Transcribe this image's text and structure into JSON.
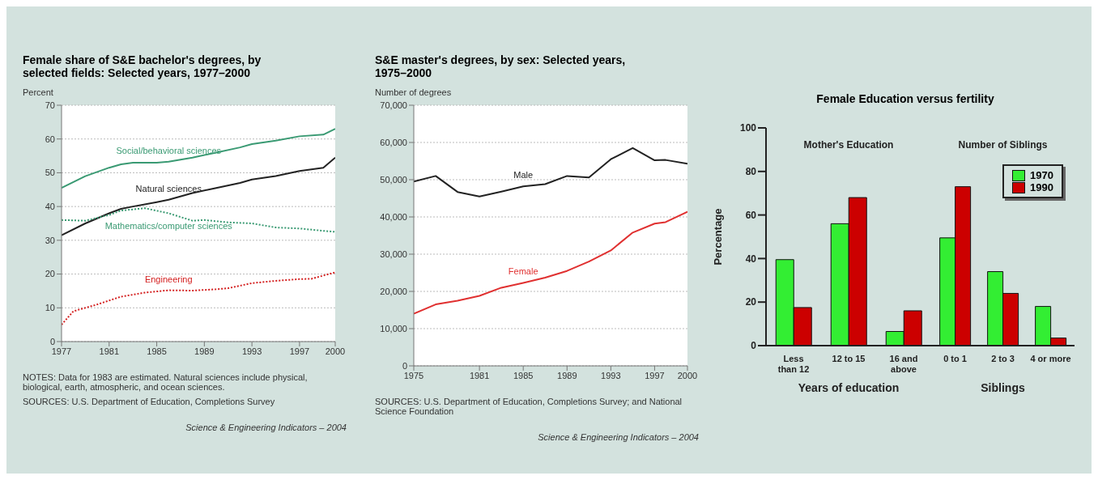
{
  "chart_data": [
    {
      "type": "line",
      "title": "Female share of S&E bachelor's degrees, by selected fields: Selected years, 1977–2000",
      "ylabel": "Percent",
      "xlim": [
        1977,
        2000
      ],
      "xticks": [
        1977,
        1981,
        1985,
        1989,
        1993,
        1997,
        2000
      ],
      "ylim": [
        0,
        70
      ],
      "yticks": [
        0,
        10,
        20,
        30,
        40,
        50,
        60,
        70
      ],
      "grid": "y",
      "series": [
        {
          "name": "Social/behavioral sciences",
          "color": "#3a9a73",
          "line_style": "solid",
          "x": [
            1977,
            1979,
            1981,
            1982,
            1983,
            1985,
            1986,
            1988,
            1990,
            1992,
            1993,
            1995,
            1997,
            1999,
            2000
          ],
          "values": [
            45.5,
            49,
            51.5,
            52.5,
            53,
            53,
            53.3,
            54.5,
            56,
            57.5,
            58.5,
            59.5,
            60.8,
            61.3,
            63
          ]
        },
        {
          "name": "Natural sciences",
          "color": "#222222",
          "line_style": "solid",
          "x": [
            1977,
            1979,
            1981,
            1982,
            1983,
            1985,
            1986,
            1988,
            1990,
            1992,
            1993,
            1995,
            1997,
            1999,
            2000
          ],
          "values": [
            31.5,
            35,
            38,
            39.3,
            40,
            41.3,
            42,
            44,
            45.5,
            47,
            48,
            49,
            50.5,
            51.5,
            54.5
          ]
        },
        {
          "name": "Mathematics/computer sciences",
          "color": "#3a9a73",
          "line_style": "dotted",
          "x": [
            1977,
            1979,
            1981,
            1982,
            1984,
            1986,
            1988,
            1989,
            1991,
            1993,
            1995,
            1997,
            1999,
            2000
          ],
          "values": [
            36,
            35.8,
            37.5,
            38.8,
            39.5,
            38,
            35.8,
            36,
            35.3,
            35,
            33.8,
            33.5,
            32.8,
            32.5
          ]
        },
        {
          "name": "Engineering",
          "color": "#d42020",
          "line_style": "dotted",
          "x": [
            1977,
            1978,
            1980,
            1982,
            1984,
            1986,
            1988,
            1990,
            1991,
            1993,
            1995,
            1997,
            1998,
            2000
          ],
          "values": [
            5,
            9,
            11,
            13.3,
            14.5,
            15.2,
            15.1,
            15.5,
            15.8,
            17.3,
            18,
            18.5,
            18.6,
            20.5
          ]
        }
      ],
      "annotations": [
        "NOTES: Data for 1983 are estimated. Natural sciences include physical, biological, earth, atmospheric, and ocean sciences.",
        "SOURCES: U.S. Department of Education, Completions Survey",
        "Science & Engineering Indicators – 2004"
      ]
    },
    {
      "type": "line",
      "title": "S&E master's degrees, by sex: Selected years, 1975–2000",
      "ylabel": "Number of degrees",
      "xlim": [
        1975,
        2000
      ],
      "xticks": [
        1975,
        1981,
        1985,
        1989,
        1993,
        1997,
        2000
      ],
      "ylim": [
        0,
        70000
      ],
      "yticks": [
        0,
        {
          "value": 10000,
          "label": "10,000"
        },
        {
          "value": 20000,
          "label": "20,000"
        },
        {
          "value": 30000,
          "label": "30,000"
        },
        {
          "value": 40000,
          "label": "40,000"
        },
        {
          "value": 50000,
          "label": "50,000"
        },
        {
          "value": 60000,
          "label": "60,000"
        },
        {
          "value": 70000,
          "label": "70,000"
        }
      ],
      "grid": "y",
      "series": [
        {
          "name": "Male",
          "color": "#222222",
          "x": [
            1975,
            1977,
            1979,
            1981,
            1983,
            1985,
            1987,
            1989,
            1991,
            1993,
            1995,
            1997,
            1998,
            2000
          ],
          "values": [
            49500,
            51000,
            46700,
            45500,
            46800,
            48200,
            48800,
            51000,
            50600,
            55500,
            58500,
            55200,
            55300,
            54300
          ]
        },
        {
          "name": "Female",
          "color": "#e03030",
          "x": [
            1975,
            1977,
            1979,
            1981,
            1983,
            1985,
            1987,
            1989,
            1991,
            1993,
            1995,
            1997,
            1998,
            2000
          ],
          "values": [
            14000,
            16500,
            17500,
            18800,
            21000,
            22300,
            23700,
            25500,
            28000,
            31000,
            35800,
            38200,
            38600,
            41400
          ]
        }
      ],
      "annotations": [
        "SOURCES: U.S. Department of Education, Completions Survey; and National Science Foundation",
        "Science & Engineering Indicators – 2004"
      ]
    },
    {
      "type": "bar",
      "title": "Female Education versus fertility",
      "ylabel": "Percentage",
      "xlabel": "Years of education",
      "categories": [
        "Less than 12",
        "12 to 15",
        "16 and above"
      ],
      "ylim": [
        0,
        100
      ],
      "yticks": [
        0,
        20,
        40,
        60,
        80,
        100
      ],
      "annotations": [
        "Mother's Education"
      ],
      "series": [
        {
          "color": "#33ee33",
          "values": [
            39.5,
            56,
            6.5
          ]
        },
        {
          "color": "#cc0000",
          "values": [
            17.5,
            68,
            16
          ]
        }
      ]
    },
    {
      "type": "bar",
      "xlabel": "Siblings",
      "categories": [
        "0 to 1",
        "2 to 3",
        "4 or more"
      ],
      "ylim": [
        0,
        100
      ],
      "yticks": [
        0,
        20,
        40,
        60,
        80,
        100
      ],
      "tick_labels": "x",
      "annotations": [
        "Number of Siblings"
      ],
      "legend": "top right",
      "series": [
        {
          "name": "1970",
          "color": "#33ee33",
          "values": [
            49.5,
            34,
            18
          ]
        },
        {
          "name": "1990",
          "color": "#cc0000",
          "values": [
            73,
            24,
            3.5
          ]
        }
      ]
    }
  ]
}
